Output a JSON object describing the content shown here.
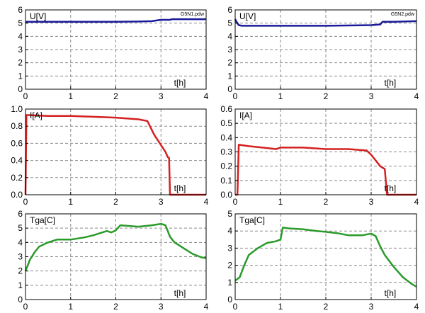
{
  "chart_data": [
    {
      "type": "line",
      "file_label": "G5N1.pdw",
      "title": "U[V]",
      "xlabel": "t[h]",
      "xlim": [
        0,
        4
      ],
      "ylim": [
        0,
        6
      ],
      "xticks": [
        "0",
        "1",
        "2",
        "3",
        "4"
      ],
      "yticks": [
        "0",
        "1",
        "2",
        "3",
        "4",
        "5",
        "6"
      ],
      "grid": true,
      "line_color": "#1a1a9a",
      "x": [
        0,
        0.05,
        0.5,
        1.0,
        1.5,
        2.0,
        2.5,
        2.8,
        2.9,
        3.0,
        3.2,
        3.25,
        3.5,
        4.0
      ],
      "y": [
        5.1,
        5.1,
        5.1,
        5.1,
        5.1,
        5.1,
        5.12,
        5.15,
        5.2,
        5.25,
        5.25,
        5.3,
        5.3,
        5.3
      ]
    },
    {
      "type": "line",
      "file_label": "G5N2.pdw",
      "title": "U[V]",
      "xlabel": "t[h]",
      "xlim": [
        0,
        4
      ],
      "ylim": [
        0,
        6
      ],
      "xticks": [
        "0",
        "1",
        "2",
        "3",
        "4"
      ],
      "yticks": [
        "0",
        "1",
        "2",
        "3",
        "4",
        "5",
        "6"
      ],
      "grid": true,
      "line_color": "#1a1a9a",
      "x": [
        0,
        0.03,
        0.08,
        0.15,
        0.5,
        1.0,
        2.0,
        3.0,
        3.2,
        3.25,
        3.35,
        3.5,
        4.0
      ],
      "y": [
        5.3,
        5.1,
        4.85,
        4.8,
        4.8,
        4.8,
        4.8,
        4.85,
        4.9,
        5.1,
        5.1,
        5.1,
        5.15
      ]
    },
    {
      "type": "line",
      "title": "I[A]",
      "xlabel": "t[h]",
      "xlim": [
        0,
        4
      ],
      "ylim": [
        0,
        1.0
      ],
      "xticks": [
        "0",
        "1",
        "2",
        "3",
        "4"
      ],
      "yticks": [
        "0.0",
        "0.2",
        "0.4",
        "0.6",
        "0.8",
        "1.0"
      ],
      "grid": true,
      "line_color": "#d42020",
      "x": [
        0,
        0.02,
        0.05,
        0.5,
        1.0,
        1.5,
        2.0,
        2.5,
        2.7,
        2.85,
        3.0,
        3.1,
        3.15,
        3.18,
        3.2,
        3.5,
        4.0
      ],
      "y": [
        0,
        0.93,
        0.93,
        0.92,
        0.92,
        0.91,
        0.9,
        0.88,
        0.86,
        0.7,
        0.58,
        0.5,
        0.44,
        0.43,
        0.0,
        0.0,
        0.0
      ]
    },
    {
      "type": "line",
      "title": "I[A]",
      "xlabel": "t[h]",
      "xlim": [
        0,
        4
      ],
      "ylim": [
        0,
        0.6
      ],
      "xticks": [
        "0",
        "1",
        "2",
        "3",
        "4"
      ],
      "yticks": [
        "0.0",
        "0.1",
        "0.2",
        "0.3",
        "0.4",
        "0.5",
        "0.6"
      ],
      "grid": true,
      "line_color": "#d42020",
      "x": [
        0,
        0.05,
        0.08,
        0.3,
        0.6,
        0.9,
        1.0,
        1.5,
        2.0,
        2.5,
        2.9,
        3.0,
        3.1,
        3.2,
        3.3,
        3.35,
        3.5,
        4.0
      ],
      "y": [
        0,
        0.0,
        0.35,
        0.34,
        0.33,
        0.32,
        0.33,
        0.33,
        0.32,
        0.32,
        0.31,
        0.28,
        0.24,
        0.2,
        0.18,
        0.0,
        0.0,
        0.0
      ]
    },
    {
      "type": "line",
      "title": "Tga[C]",
      "xlabel": "t[h]",
      "xlim": [
        0,
        4
      ],
      "ylim": [
        0,
        6
      ],
      "xticks": [
        "0",
        "1",
        "2",
        "3",
        "4"
      ],
      "yticks": [
        "0",
        "1",
        "2",
        "3",
        "4",
        "5",
        "6"
      ],
      "grid": true,
      "line_color": "#2a9a2a",
      "x": [
        0,
        0.1,
        0.2,
        0.3,
        0.5,
        0.7,
        1.0,
        1.3,
        1.5,
        1.8,
        1.9,
        2.0,
        2.1,
        2.3,
        2.5,
        2.8,
        3.0,
        3.1,
        3.2,
        3.3,
        3.5,
        3.7,
        3.9,
        4.0
      ],
      "y": [
        2.0,
        2.8,
        3.3,
        3.7,
        4.0,
        4.2,
        4.2,
        4.35,
        4.5,
        4.8,
        4.7,
        4.85,
        5.2,
        5.15,
        5.1,
        5.2,
        5.3,
        5.2,
        4.4,
        4.0,
        3.6,
        3.2,
        2.95,
        2.9
      ]
    },
    {
      "type": "line",
      "title": "Tga[C]",
      "xlabel": "t[h]",
      "xlim": [
        0,
        4
      ],
      "ylim": [
        0,
        5
      ],
      "xticks": [
        "0",
        "1",
        "2",
        "3",
        "4"
      ],
      "yticks": [
        "0",
        "1",
        "2",
        "3",
        "4",
        "5"
      ],
      "grid": true,
      "line_color": "#2a9a2a",
      "x": [
        0,
        0.1,
        0.2,
        0.3,
        0.5,
        0.7,
        0.9,
        1.0,
        1.05,
        1.2,
        1.5,
        1.8,
        2.0,
        2.3,
        2.5,
        2.8,
        3.0,
        3.1,
        3.2,
        3.3,
        3.5,
        3.7,
        3.9,
        4.0
      ],
      "y": [
        1.1,
        1.3,
        2.0,
        2.6,
        3.0,
        3.3,
        3.4,
        3.5,
        4.2,
        4.15,
        4.1,
        4.0,
        3.95,
        3.85,
        3.75,
        3.75,
        3.85,
        3.7,
        3.1,
        2.6,
        1.9,
        1.3,
        0.9,
        0.75
      ]
    }
  ]
}
